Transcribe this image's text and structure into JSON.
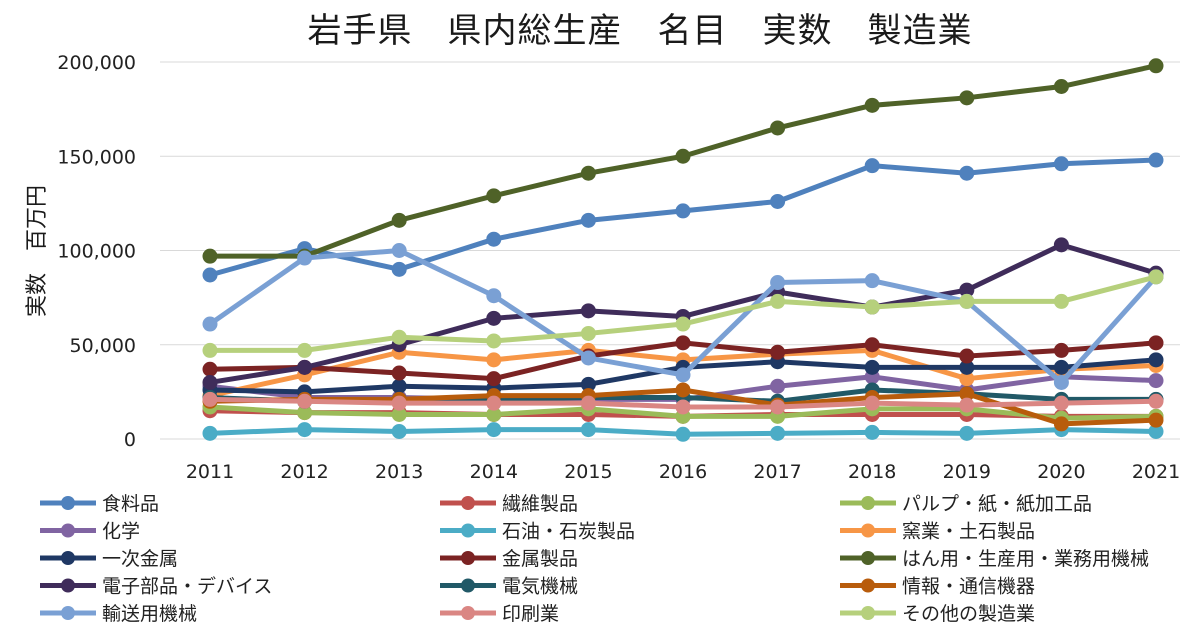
{
  "chart_data": {
    "type": "line",
    "title": "岩手県　県内総生産　名目　実数　製造業",
    "xlabel": "",
    "ylabel": "実数　百万円",
    "ylim": [
      0,
      200000
    ],
    "yticks": [
      0,
      50000,
      100000,
      150000,
      200000
    ],
    "ytick_labels": [
      "0",
      "50,000",
      "100,000",
      "150,000",
      "200,000"
    ],
    "grid": true,
    "legend_position": "bottom",
    "categories": [
      "2011",
      "2012",
      "2013",
      "2014",
      "2015",
      "2016",
      "2017",
      "2018",
      "2019",
      "2020",
      "2021"
    ],
    "series": [
      {
        "name": "食料品",
        "color": "#4f81bd",
        "values": [
          87000,
          101000,
          90000,
          106000,
          116000,
          121000,
          126000,
          145000,
          141000,
          146000,
          148000
        ]
      },
      {
        "name": "繊維製品",
        "color": "#c0504d",
        "values": [
          15000,
          14000,
          14000,
          13000,
          13000,
          12000,
          13000,
          13000,
          13000,
          12000,
          12000
        ]
      },
      {
        "name": "パルプ・紙・紙加工品",
        "color": "#9bbb59",
        "values": [
          17000,
          14000,
          13000,
          13000,
          16000,
          12000,
          12000,
          16000,
          16000,
          11000,
          12000
        ]
      },
      {
        "name": "化学",
        "color": "#8064a2",
        "values": [
          28000,
          22000,
          22000,
          21000,
          21000,
          21000,
          28000,
          33000,
          26000,
          33000,
          31000
        ]
      },
      {
        "name": "石油・石炭製品",
        "color": "#4bacc6",
        "values": [
          3000,
          5000,
          4000,
          5000,
          5000,
          2500,
          3000,
          3500,
          3000,
          5000,
          4000
        ]
      },
      {
        "name": "窯業・土石製品",
        "color": "#f79646",
        "values": [
          23000,
          34000,
          46000,
          42000,
          47000,
          42000,
          45000,
          47000,
          32000,
          37000,
          39000
        ]
      },
      {
        "name": "一次金属",
        "color": "#1f3864",
        "values": [
          26000,
          25000,
          28000,
          27000,
          29000,
          38000,
          41000,
          38000,
          38000,
          38000,
          42000
        ]
      },
      {
        "name": "金属製品",
        "color": "#7b2323",
        "values": [
          37000,
          38000,
          35000,
          32000,
          44000,
          51000,
          46000,
          50000,
          44000,
          47000,
          51000
        ]
      },
      {
        "name": "はん用・生産用・業務用機械",
        "color": "#4f6228",
        "values": [
          97000,
          97000,
          116000,
          129000,
          141000,
          150000,
          165000,
          177000,
          181000,
          187000,
          198000
        ]
      },
      {
        "name": "電子部品・デバイス",
        "color": "#3f2c5a",
        "values": [
          30000,
          38000,
          50000,
          64000,
          68000,
          65000,
          78000,
          70000,
          79000,
          103000,
          88000
        ]
      },
      {
        "name": "電気機械",
        "color": "#215967",
        "values": [
          22000,
          20000,
          21000,
          21000,
          22000,
          22000,
          20000,
          26000,
          24000,
          21000,
          21000
        ]
      },
      {
        "name": "情報・通信機器",
        "color": "#b85c0c",
        "values": [
          20000,
          21000,
          21000,
          23000,
          23000,
          26000,
          18000,
          22000,
          24000,
          8000,
          10000
        ]
      },
      {
        "name": "輸送用機械",
        "color": "#7aa0d4",
        "values": [
          61000,
          96000,
          100000,
          76000,
          43000,
          34000,
          83000,
          84000,
          73000,
          30000,
          86000
        ]
      },
      {
        "name": "印刷業",
        "color": "#da8683",
        "values": [
          21000,
          20000,
          19000,
          19000,
          19000,
          17000,
          17000,
          19000,
          18000,
          19000,
          20000
        ]
      },
      {
        "name": "その他の製造業",
        "color": "#b6d07c",
        "values": [
          47000,
          47000,
          54000,
          52000,
          56000,
          61000,
          73000,
          70000,
          73000,
          73000,
          86000
        ]
      }
    ]
  }
}
